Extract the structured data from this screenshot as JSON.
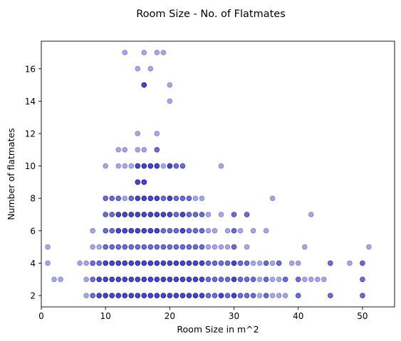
{
  "chart_data": {
    "type": "scatter",
    "title": "Room Size - No. of Flatmates",
    "xlabel": "Room Size in m^2",
    "ylabel": "Number of flatmates",
    "xlim": [
      0,
      55
    ],
    "ylim": [
      1.3,
      17.7
    ],
    "xticks": [
      0,
      10,
      20,
      30,
      40,
      50
    ],
    "yticks": [
      2,
      4,
      6,
      8,
      10,
      12,
      14,
      16
    ],
    "grid": false,
    "marker_color": "#0000cd",
    "marker_edge_color": "#00003a",
    "marker_alpha": 0.35,
    "points": [
      [
        13,
        17
      ],
      [
        16,
        17
      ],
      [
        18,
        17
      ],
      [
        19,
        17
      ],
      [
        15,
        16
      ],
      [
        17,
        16
      ],
      [
        16,
        15
      ],
      [
        16,
        15
      ],
      [
        16,
        15
      ],
      [
        20,
        15
      ],
      [
        20,
        14
      ],
      [
        15,
        12
      ],
      [
        18,
        12
      ],
      [
        12,
        11
      ],
      [
        13,
        11
      ],
      [
        15,
        11
      ],
      [
        16,
        11
      ],
      [
        18,
        11
      ],
      [
        18,
        11
      ],
      [
        10,
        10
      ],
      [
        12,
        10
      ],
      [
        13,
        10
      ],
      [
        14,
        10
      ],
      [
        15,
        10
      ],
      [
        15,
        10
      ],
      [
        15,
        10
      ],
      [
        16,
        10
      ],
      [
        16,
        10
      ],
      [
        16,
        10
      ],
      [
        17,
        10
      ],
      [
        17,
        10
      ],
      [
        17,
        10
      ],
      [
        18,
        10
      ],
      [
        18,
        10
      ],
      [
        18,
        10
      ],
      [
        19,
        10
      ],
      [
        20,
        10
      ],
      [
        20,
        10
      ],
      [
        20,
        10
      ],
      [
        21,
        10
      ],
      [
        21,
        10
      ],
      [
        22,
        10
      ],
      [
        22,
        10
      ],
      [
        28,
        10
      ],
      [
        15,
        9
      ],
      [
        15,
        9
      ],
      [
        15,
        9
      ],
      [
        16,
        9
      ],
      [
        16,
        9
      ],
      [
        16,
        9
      ],
      [
        10,
        8
      ],
      [
        10,
        8
      ],
      [
        11,
        8
      ],
      [
        11,
        8
      ],
      [
        12,
        8
      ],
      [
        12,
        8
      ],
      [
        13,
        8
      ],
      [
        14,
        8
      ],
      [
        14,
        8
      ],
      [
        15,
        8
      ],
      [
        15,
        8
      ],
      [
        15,
        8
      ],
      [
        16,
        8
      ],
      [
        16,
        8
      ],
      [
        16,
        8
      ],
      [
        17,
        8
      ],
      [
        17,
        8
      ],
      [
        17,
        8
      ],
      [
        18,
        8
      ],
      [
        18,
        8
      ],
      [
        18,
        8
      ],
      [
        19,
        8
      ],
      [
        19,
        8
      ],
      [
        20,
        8
      ],
      [
        20,
        8
      ],
      [
        20,
        8
      ],
      [
        21,
        8
      ],
      [
        21,
        8
      ],
      [
        22,
        8
      ],
      [
        22,
        8
      ],
      [
        23,
        8
      ],
      [
        23,
        8
      ],
      [
        24,
        8
      ],
      [
        25,
        8
      ],
      [
        36,
        8
      ],
      [
        10,
        7
      ],
      [
        10,
        7
      ],
      [
        11,
        7
      ],
      [
        11,
        7
      ],
      [
        12,
        7
      ],
      [
        12,
        7
      ],
      [
        12,
        7
      ],
      [
        13,
        7
      ],
      [
        13,
        7
      ],
      [
        13,
        7
      ],
      [
        14,
        7
      ],
      [
        14,
        7
      ],
      [
        14,
        7
      ],
      [
        15,
        7
      ],
      [
        15,
        7
      ],
      [
        15,
        7
      ],
      [
        16,
        7
      ],
      [
        16,
        7
      ],
      [
        16,
        7
      ],
      [
        17,
        7
      ],
      [
        17,
        7
      ],
      [
        17,
        7
      ],
      [
        18,
        7
      ],
      [
        18,
        7
      ],
      [
        18,
        7
      ],
      [
        19,
        7
      ],
      [
        19,
        7
      ],
      [
        19,
        7
      ],
      [
        20,
        7
      ],
      [
        20,
        7
      ],
      [
        20,
        7
      ],
      [
        21,
        7
      ],
      [
        21,
        7
      ],
      [
        22,
        7
      ],
      [
        22,
        7
      ],
      [
        22,
        7
      ],
      [
        23,
        7
      ],
      [
        23,
        7
      ],
      [
        24,
        7
      ],
      [
        24,
        7
      ],
      [
        25,
        7
      ],
      [
        25,
        7
      ],
      [
        26,
        7
      ],
      [
        28,
        7
      ],
      [
        30,
        7
      ],
      [
        30,
        7
      ],
      [
        32,
        7
      ],
      [
        32,
        7
      ],
      [
        42,
        7
      ],
      [
        8,
        6
      ],
      [
        10,
        6
      ],
      [
        10,
        6
      ],
      [
        11,
        6
      ],
      [
        11,
        6
      ],
      [
        12,
        6
      ],
      [
        12,
        6
      ],
      [
        12,
        6
      ],
      [
        13,
        6
      ],
      [
        13,
        6
      ],
      [
        13,
        6
      ],
      [
        14,
        6
      ],
      [
        14,
        6
      ],
      [
        14,
        6
      ],
      [
        15,
        6
      ],
      [
        15,
        6
      ],
      [
        15,
        6
      ],
      [
        16,
        6
      ],
      [
        16,
        6
      ],
      [
        16,
        6
      ],
      [
        17,
        6
      ],
      [
        17,
        6
      ],
      [
        17,
        6
      ],
      [
        18,
        6
      ],
      [
        18,
        6
      ],
      [
        18,
        6
      ],
      [
        19,
        6
      ],
      [
        19,
        6
      ],
      [
        20,
        6
      ],
      [
        20,
        6
      ],
      [
        21,
        6
      ],
      [
        21,
        6
      ],
      [
        22,
        6
      ],
      [
        22,
        6
      ],
      [
        22,
        6
      ],
      [
        23,
        6
      ],
      [
        23,
        6
      ],
      [
        24,
        6
      ],
      [
        24,
        6
      ],
      [
        25,
        6
      ],
      [
        25,
        6
      ],
      [
        26,
        6
      ],
      [
        27,
        6
      ],
      [
        29,
        6
      ],
      [
        30,
        6
      ],
      [
        30,
        6
      ],
      [
        31,
        6
      ],
      [
        33,
        6
      ],
      [
        35,
        6
      ],
      [
        1,
        5
      ],
      [
        8,
        5
      ],
      [
        9,
        5
      ],
      [
        10,
        5
      ],
      [
        10,
        5
      ],
      [
        11,
        5
      ],
      [
        11,
        5
      ],
      [
        12,
        5
      ],
      [
        12,
        5
      ],
      [
        13,
        5
      ],
      [
        13,
        5
      ],
      [
        14,
        5
      ],
      [
        14,
        5
      ],
      [
        15,
        5
      ],
      [
        15,
        5
      ],
      [
        16,
        5
      ],
      [
        16,
        5
      ],
      [
        17,
        5
      ],
      [
        17,
        5
      ],
      [
        18,
        5
      ],
      [
        18,
        5
      ],
      [
        19,
        5
      ],
      [
        19,
        5
      ],
      [
        20,
        5
      ],
      [
        20,
        5
      ],
      [
        21,
        5
      ],
      [
        21,
        5
      ],
      [
        22,
        5
      ],
      [
        22,
        5
      ],
      [
        23,
        5
      ],
      [
        23,
        5
      ],
      [
        24,
        5
      ],
      [
        24,
        5
      ],
      [
        25,
        5
      ],
      [
        25,
        5
      ],
      [
        26,
        5
      ],
      [
        27,
        5
      ],
      [
        28,
        5
      ],
      [
        29,
        5
      ],
      [
        30,
        5
      ],
      [
        30,
        5
      ],
      [
        32,
        5
      ],
      [
        41,
        5
      ],
      [
        51,
        5
      ],
      [
        1,
        4
      ],
      [
        6,
        4
      ],
      [
        7,
        4
      ],
      [
        8,
        4
      ],
      [
        8,
        4
      ],
      [
        9,
        4
      ],
      [
        9,
        4
      ],
      [
        10,
        4
      ],
      [
        10,
        4
      ],
      [
        10,
        4
      ],
      [
        11,
        4
      ],
      [
        11,
        4
      ],
      [
        11,
        4
      ],
      [
        12,
        4
      ],
      [
        12,
        4
      ],
      [
        12,
        4
      ],
      [
        13,
        4
      ],
      [
        13,
        4
      ],
      [
        13,
        4
      ],
      [
        14,
        4
      ],
      [
        14,
        4
      ],
      [
        14,
        4
      ],
      [
        15,
        4
      ],
      [
        15,
        4
      ],
      [
        15,
        4
      ],
      [
        16,
        4
      ],
      [
        16,
        4
      ],
      [
        16,
        4
      ],
      [
        17,
        4
      ],
      [
        17,
        4
      ],
      [
        17,
        4
      ],
      [
        18,
        4
      ],
      [
        18,
        4
      ],
      [
        18,
        4
      ],
      [
        19,
        4
      ],
      [
        19,
        4
      ],
      [
        19,
        4
      ],
      [
        20,
        4
      ],
      [
        20,
        4
      ],
      [
        20,
        4
      ],
      [
        21,
        4
      ],
      [
        21,
        4
      ],
      [
        21,
        4
      ],
      [
        22,
        4
      ],
      [
        22,
        4
      ],
      [
        22,
        4
      ],
      [
        23,
        4
      ],
      [
        23,
        4
      ],
      [
        23,
        4
      ],
      [
        24,
        4
      ],
      [
        24,
        4
      ],
      [
        24,
        4
      ],
      [
        25,
        4
      ],
      [
        25,
        4
      ],
      [
        25,
        4
      ],
      [
        26,
        4
      ],
      [
        26,
        4
      ],
      [
        27,
        4
      ],
      [
        27,
        4
      ],
      [
        28,
        4
      ],
      [
        28,
        4
      ],
      [
        29,
        4
      ],
      [
        29,
        4
      ],
      [
        30,
        4
      ],
      [
        30,
        4
      ],
      [
        30,
        4
      ],
      [
        31,
        4
      ],
      [
        31,
        4
      ],
      [
        32,
        4
      ],
      [
        32,
        4
      ],
      [
        33,
        4
      ],
      [
        34,
        4
      ],
      [
        35,
        4
      ],
      [
        35,
        4
      ],
      [
        36,
        4
      ],
      [
        37,
        4
      ],
      [
        37,
        4
      ],
      [
        39,
        4
      ],
      [
        40,
        4
      ],
      [
        45,
        4
      ],
      [
        45,
        4
      ],
      [
        48,
        4
      ],
      [
        50,
        4
      ],
      [
        50,
        4
      ],
      [
        2,
        3
      ],
      [
        3,
        3
      ],
      [
        7,
        3
      ],
      [
        8,
        3
      ],
      [
        8,
        3
      ],
      [
        9,
        3
      ],
      [
        9,
        3
      ],
      [
        9,
        3
      ],
      [
        10,
        3
      ],
      [
        10,
        3
      ],
      [
        10,
        3
      ],
      [
        11,
        3
      ],
      [
        11,
        3
      ],
      [
        11,
        3
      ],
      [
        12,
        3
      ],
      [
        12,
        3
      ],
      [
        12,
        3
      ],
      [
        13,
        3
      ],
      [
        13,
        3
      ],
      [
        13,
        3
      ],
      [
        14,
        3
      ],
      [
        14,
        3
      ],
      [
        14,
        3
      ],
      [
        15,
        3
      ],
      [
        15,
        3
      ],
      [
        15,
        3
      ],
      [
        16,
        3
      ],
      [
        16,
        3
      ],
      [
        16,
        3
      ],
      [
        17,
        3
      ],
      [
        17,
        3
      ],
      [
        17,
        3
      ],
      [
        18,
        3
      ],
      [
        18,
        3
      ],
      [
        18,
        3
      ],
      [
        19,
        3
      ],
      [
        19,
        3
      ],
      [
        19,
        3
      ],
      [
        20,
        3
      ],
      [
        20,
        3
      ],
      [
        20,
        3
      ],
      [
        21,
        3
      ],
      [
        21,
        3
      ],
      [
        21,
        3
      ],
      [
        22,
        3
      ],
      [
        22,
        3
      ],
      [
        22,
        3
      ],
      [
        23,
        3
      ],
      [
        23,
        3
      ],
      [
        23,
        3
      ],
      [
        24,
        3
      ],
      [
        24,
        3
      ],
      [
        24,
        3
      ],
      [
        25,
        3
      ],
      [
        25,
        3
      ],
      [
        25,
        3
      ],
      [
        26,
        3
      ],
      [
        26,
        3
      ],
      [
        27,
        3
      ],
      [
        27,
        3
      ],
      [
        28,
        3
      ],
      [
        28,
        3
      ],
      [
        29,
        3
      ],
      [
        29,
        3
      ],
      [
        30,
        3
      ],
      [
        30,
        3
      ],
      [
        30,
        3
      ],
      [
        31,
        3
      ],
      [
        31,
        3
      ],
      [
        32,
        3
      ],
      [
        32,
        3
      ],
      [
        33,
        3
      ],
      [
        33,
        3
      ],
      [
        34,
        3
      ],
      [
        35,
        3
      ],
      [
        35,
        3
      ],
      [
        36,
        3
      ],
      [
        37,
        3
      ],
      [
        38,
        3
      ],
      [
        38,
        3
      ],
      [
        40,
        3
      ],
      [
        40,
        3
      ],
      [
        41,
        3
      ],
      [
        42,
        3
      ],
      [
        43,
        3
      ],
      [
        44,
        3
      ],
      [
        50,
        3
      ],
      [
        50,
        3
      ],
      [
        7,
        2
      ],
      [
        8,
        2
      ],
      [
        8,
        2
      ],
      [
        9,
        2
      ],
      [
        9,
        2
      ],
      [
        9,
        2
      ],
      [
        10,
        2
      ],
      [
        10,
        2
      ],
      [
        10,
        2
      ],
      [
        11,
        2
      ],
      [
        11,
        2
      ],
      [
        11,
        2
      ],
      [
        12,
        2
      ],
      [
        12,
        2
      ],
      [
        12,
        2
      ],
      [
        13,
        2
      ],
      [
        13,
        2
      ],
      [
        13,
        2
      ],
      [
        14,
        2
      ],
      [
        14,
        2
      ],
      [
        14,
        2
      ],
      [
        15,
        2
      ],
      [
        15,
        2
      ],
      [
        15,
        2
      ],
      [
        16,
        2
      ],
      [
        16,
        2
      ],
      [
        16,
        2
      ],
      [
        17,
        2
      ],
      [
        17,
        2
      ],
      [
        17,
        2
      ],
      [
        18,
        2
      ],
      [
        18,
        2
      ],
      [
        18,
        2
      ],
      [
        19,
        2
      ],
      [
        19,
        2
      ],
      [
        19,
        2
      ],
      [
        20,
        2
      ],
      [
        20,
        2
      ],
      [
        20,
        2
      ],
      [
        21,
        2
      ],
      [
        21,
        2
      ],
      [
        21,
        2
      ],
      [
        22,
        2
      ],
      [
        22,
        2
      ],
      [
        22,
        2
      ],
      [
        23,
        2
      ],
      [
        23,
        2
      ],
      [
        23,
        2
      ],
      [
        24,
        2
      ],
      [
        24,
        2
      ],
      [
        24,
        2
      ],
      [
        25,
        2
      ],
      [
        25,
        2
      ],
      [
        25,
        2
      ],
      [
        26,
        2
      ],
      [
        26,
        2
      ],
      [
        27,
        2
      ],
      [
        27,
        2
      ],
      [
        28,
        2
      ],
      [
        28,
        2
      ],
      [
        28,
        2
      ],
      [
        29,
        2
      ],
      [
        29,
        2
      ],
      [
        30,
        2
      ],
      [
        30,
        2
      ],
      [
        30,
        2
      ],
      [
        31,
        2
      ],
      [
        31,
        2
      ],
      [
        32,
        2
      ],
      [
        32,
        2
      ],
      [
        33,
        2
      ],
      [
        33,
        2
      ],
      [
        34,
        2
      ],
      [
        35,
        2
      ],
      [
        35,
        2
      ],
      [
        36,
        2
      ],
      [
        37,
        2
      ],
      [
        38,
        2
      ],
      [
        40,
        2
      ],
      [
        40,
        2
      ],
      [
        45,
        2
      ],
      [
        45,
        2
      ],
      [
        50,
        2
      ],
      [
        50,
        2
      ]
    ]
  }
}
